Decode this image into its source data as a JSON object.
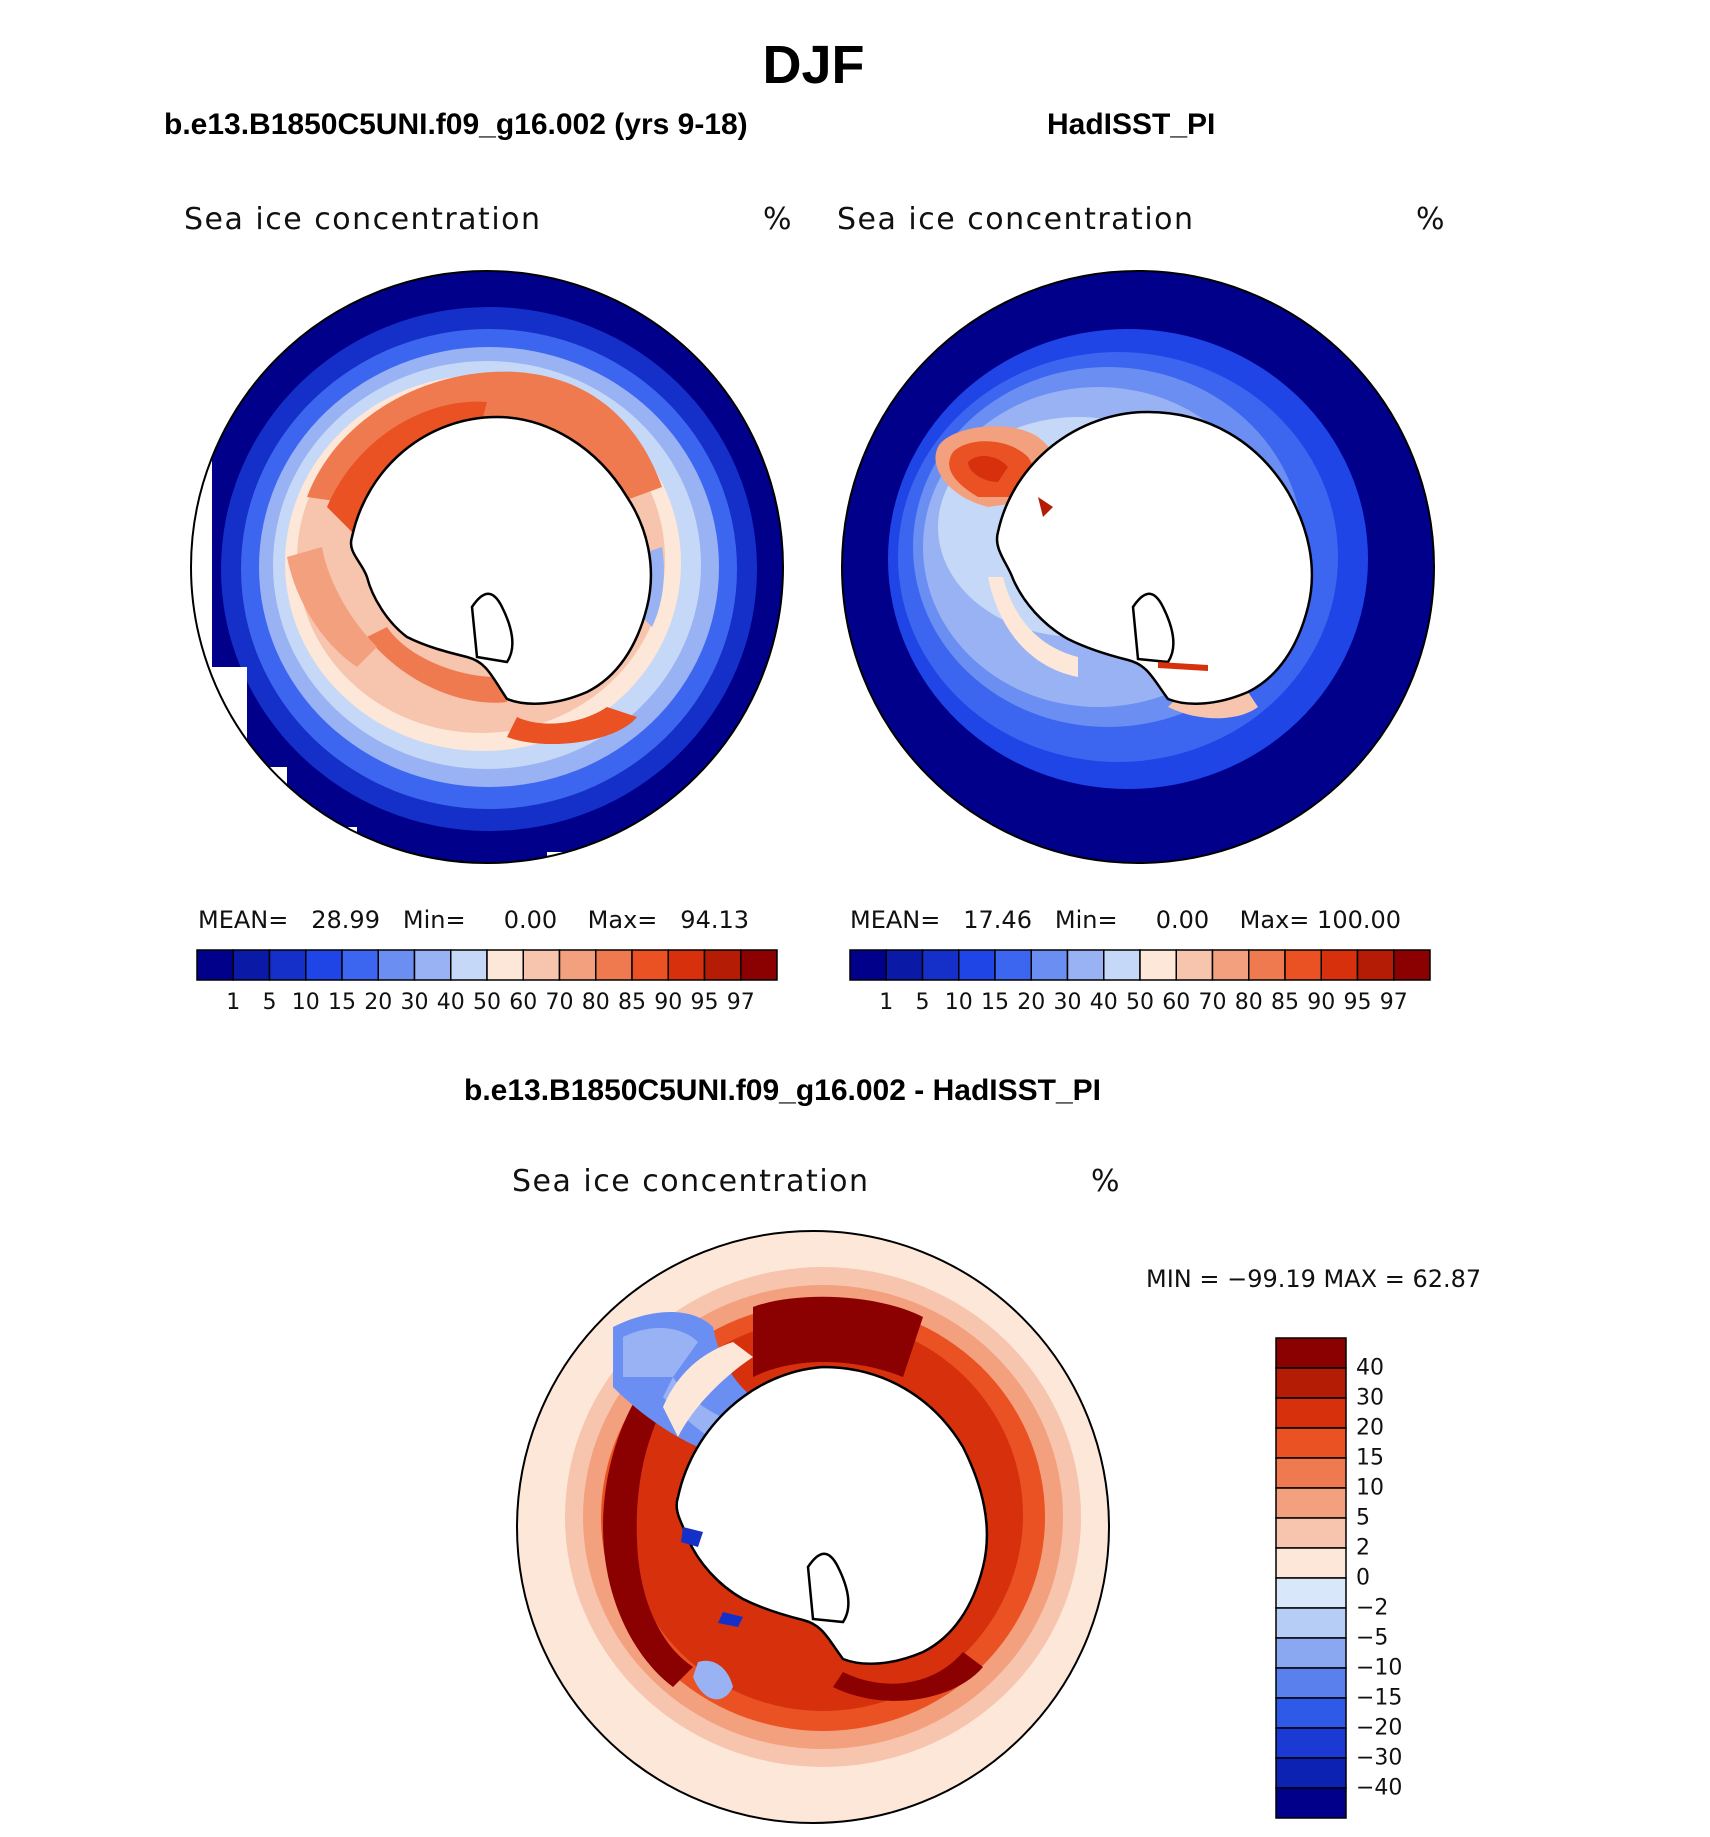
{
  "page_title": "DJF",
  "panels": [
    {
      "case_title": "b.e13.B1850C5UNI.f09_g16.002 (yrs 9-18)",
      "variable": "Sea ice concentration",
      "units": "%",
      "stats": {
        "mean_label": "MEAN=",
        "mean": "28.99",
        "min_label": "Min=",
        "min": "0.00",
        "max_label": "Max=",
        "max": "94.13"
      }
    },
    {
      "case_title": "HadISST_PI",
      "variable": "Sea ice concentration",
      "units": "%",
      "stats": {
        "mean_label": "MEAN=",
        "mean": "17.46",
        "min_label": "Min=",
        "min": "0.00",
        "max_label": "Max=",
        "max": "100.00"
      }
    }
  ],
  "diff_panel": {
    "case_title": "b.e13.B1850C5UNI.f09_g16.002 - HadISST_PI",
    "variable": "Sea ice concentration",
    "units": "%",
    "minmax": "MIN = −99.19 MAX =   62.87"
  },
  "colorbar_levels": [
    "1",
    "5",
    "10",
    "15",
    "20",
    "30",
    "40",
    "50",
    "60",
    "70",
    "80",
    "85",
    "90",
    "95",
    "97"
  ],
  "colorbar_colors": [
    "#00008b",
    "#0a1aa6",
    "#1530c8",
    "#1f45e6",
    "#3c66f0",
    "#6b8ef2",
    "#98b2f4",
    "#c6d8f7",
    "#fde7d8",
    "#f7c4ae",
    "#f3a07f",
    "#ef7a4f",
    "#ea5223",
    "#d6300d",
    "#b41c06",
    "#8b0000"
  ],
  "diff_levels": [
    "40",
    "30",
    "20",
    "15",
    "10",
    "5",
    "2",
    "0",
    "−2",
    "−5",
    "−10",
    "−15",
    "−20",
    "−30",
    "−40"
  ],
  "diff_colors": [
    "#8b0000",
    "#b41c06",
    "#d6300d",
    "#ea5223",
    "#ef7a4f",
    "#f3a07f",
    "#f7c4ae",
    "#fde7d8",
    "#d8e8fa",
    "#b6cdf6",
    "#8aa8f2",
    "#5a80ee",
    "#2f5ae8",
    "#1a3ad3",
    "#0c22b2",
    "#00008b"
  ],
  "map_colors": {
    "ocean_dark": "#00008b",
    "ocean_mid": "#1e3fdc",
    "ocean_light": "#6f95ef",
    "pale_blue": "#c6d8f7",
    "pale_orange": "#fde7d8",
    "orange": "#f3a07f",
    "red_orange": "#ea5223",
    "dark_red": "#8b0000",
    "land": "#ffffff",
    "coast": "#000000"
  }
}
